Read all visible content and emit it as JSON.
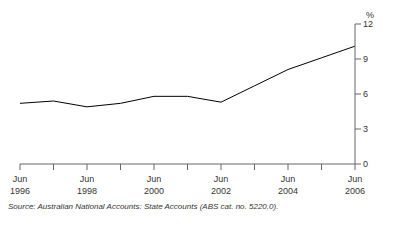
{
  "chart_data": {
    "type": "line",
    "categories": [
      "Jun 1996",
      null,
      "Jun 1998",
      null,
      "Jun 2000",
      null,
      "Jun 2002",
      null,
      "Jun 2004",
      null,
      "Jun 2006"
    ],
    "values": [
      5.2,
      5.4,
      4.9,
      5.2,
      5.8,
      5.8,
      5.3,
      6.7,
      8.1,
      9.1,
      10.1
    ],
    "color": "#000000",
    "ylim": [
      0,
      12
    ],
    "yticks": [
      0,
      3,
      6,
      9,
      12
    ],
    "y_label": "%",
    "grid": false,
    "annotation": "Source: Australian National Accounts: State Accounts (ABS cat. no. 5220.0)."
  }
}
